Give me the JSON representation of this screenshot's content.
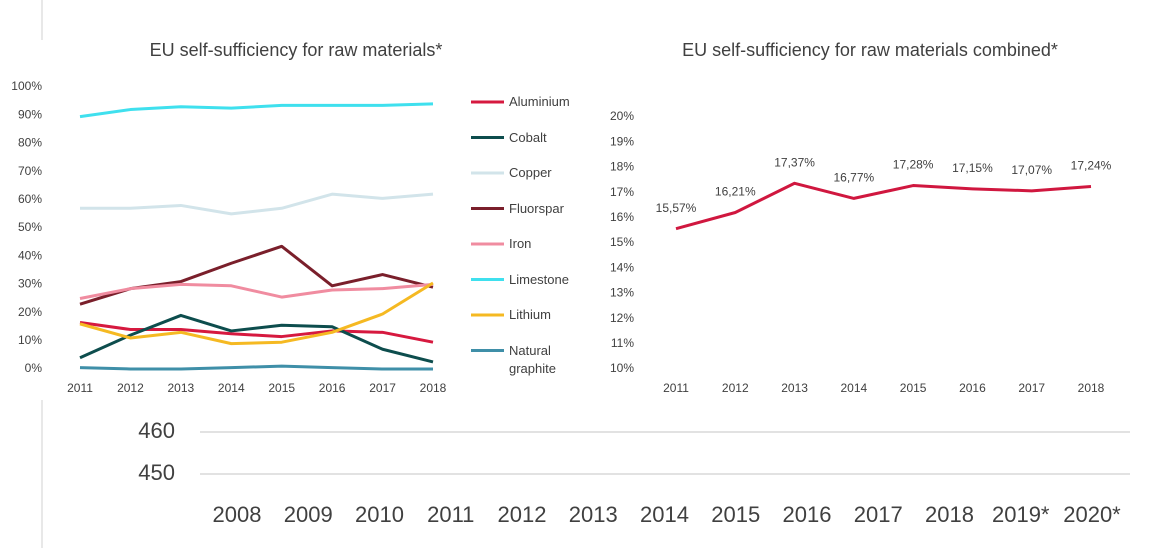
{
  "chart_data": [
    {
      "type": "line",
      "title": "EU self-sufficiency for raw materials*",
      "categories": [
        "2011",
        "2012",
        "2013",
        "2014",
        "2015",
        "2016",
        "2017",
        "2018"
      ],
      "ylim": [
        0,
        100
      ],
      "yticks": [
        {
          "value": 0,
          "label": "0%"
        },
        {
          "value": 10,
          "label": "10%"
        },
        {
          "value": 20,
          "label": "20%"
        },
        {
          "value": 30,
          "label": "30%"
        },
        {
          "value": 40,
          "label": "40%"
        },
        {
          "value": 50,
          "label": "50%"
        },
        {
          "value": 60,
          "label": "60%"
        },
        {
          "value": 70,
          "label": "70%"
        },
        {
          "value": 80,
          "label": "80%"
        },
        {
          "value": 90,
          "label": "90%"
        },
        {
          "value": 100,
          "label": "100%"
        }
      ],
      "legend": "right",
      "series": [
        {
          "name": "Aluminium",
          "color": "#d6193f",
          "values": [
            16.5,
            14,
            14,
            12.5,
            11.5,
            13.5,
            13,
            9.5
          ]
        },
        {
          "name": "Cobalt",
          "color": "#0d4d4d",
          "values": [
            4,
            12,
            19,
            13.5,
            15.5,
            15,
            7,
            2.5
          ]
        },
        {
          "name": "Copper",
          "color": "#d2e4ea",
          "values": [
            57,
            57,
            58,
            55,
            57,
            62,
            60.5,
            62
          ]
        },
        {
          "name": "Fluorspar",
          "color": "#7a1f2b",
          "values": [
            23,
            28.5,
            31,
            37.5,
            43.5,
            29.5,
            33.5,
            29
          ]
        },
        {
          "name": "Iron",
          "color": "#f08ca0",
          "values": [
            25,
            28.5,
            30,
            29.5,
            25.5,
            28,
            28.5,
            30
          ]
        },
        {
          "name": "Limestone",
          "color": "#3fe0ee",
          "values": [
            89.5,
            92,
            93,
            92.5,
            93.5,
            93.5,
            93.5,
            94
          ]
        },
        {
          "name": "Lithium",
          "color": "#f5b922",
          "values": [
            16,
            11,
            13,
            9,
            9.5,
            13,
            19.5,
            30.5
          ]
        },
        {
          "name": "Natural graphite",
          "color": "#3f8fa8",
          "values": [
            0.5,
            0,
            0,
            0.5,
            1,
            0.5,
            0,
            0
          ]
        }
      ]
    },
    {
      "type": "line",
      "title": "EU self-sufficiency for raw materials combined*",
      "categories": [
        "2011",
        "2012",
        "2013",
        "2014",
        "2015",
        "2016",
        "2017",
        "2018"
      ],
      "ylim": [
        10,
        20
      ],
      "yticks": [
        {
          "value": 10,
          "label": "10%"
        },
        {
          "value": 11,
          "label": "11%"
        },
        {
          "value": 12,
          "label": "12%"
        },
        {
          "value": 13,
          "label": "13%"
        },
        {
          "value": 14,
          "label": "14%"
        },
        {
          "value": 15,
          "label": "15%"
        },
        {
          "value": 16,
          "label": "16%"
        },
        {
          "value": 17,
          "label": "17%"
        },
        {
          "value": 18,
          "label": "18%"
        },
        {
          "value": 19,
          "label": "19%"
        },
        {
          "value": 20,
          "label": "20%"
        }
      ],
      "series": [
        {
          "color": "#d0173f",
          "values": [
            15.57,
            16.21,
            17.37,
            16.77,
            17.28,
            17.15,
            17.07,
            17.24
          ],
          "value_labels": [
            "15,57%",
            "16,21%",
            "17,37%",
            "16,77%",
            "17,28%",
            "17,15%",
            "17,07%",
            "17,24%"
          ]
        }
      ]
    },
    {
      "type": "line",
      "categories": [
        "2008",
        "2009",
        "2010",
        "2011",
        "2012",
        "2013",
        "2014",
        "2015",
        "2016",
        "2017",
        "2018",
        "2019*",
        "2020*"
      ],
      "ylim": [
        450,
        460
      ],
      "yticks": [
        460,
        450
      ],
      "grid": true,
      "series": []
    }
  ]
}
